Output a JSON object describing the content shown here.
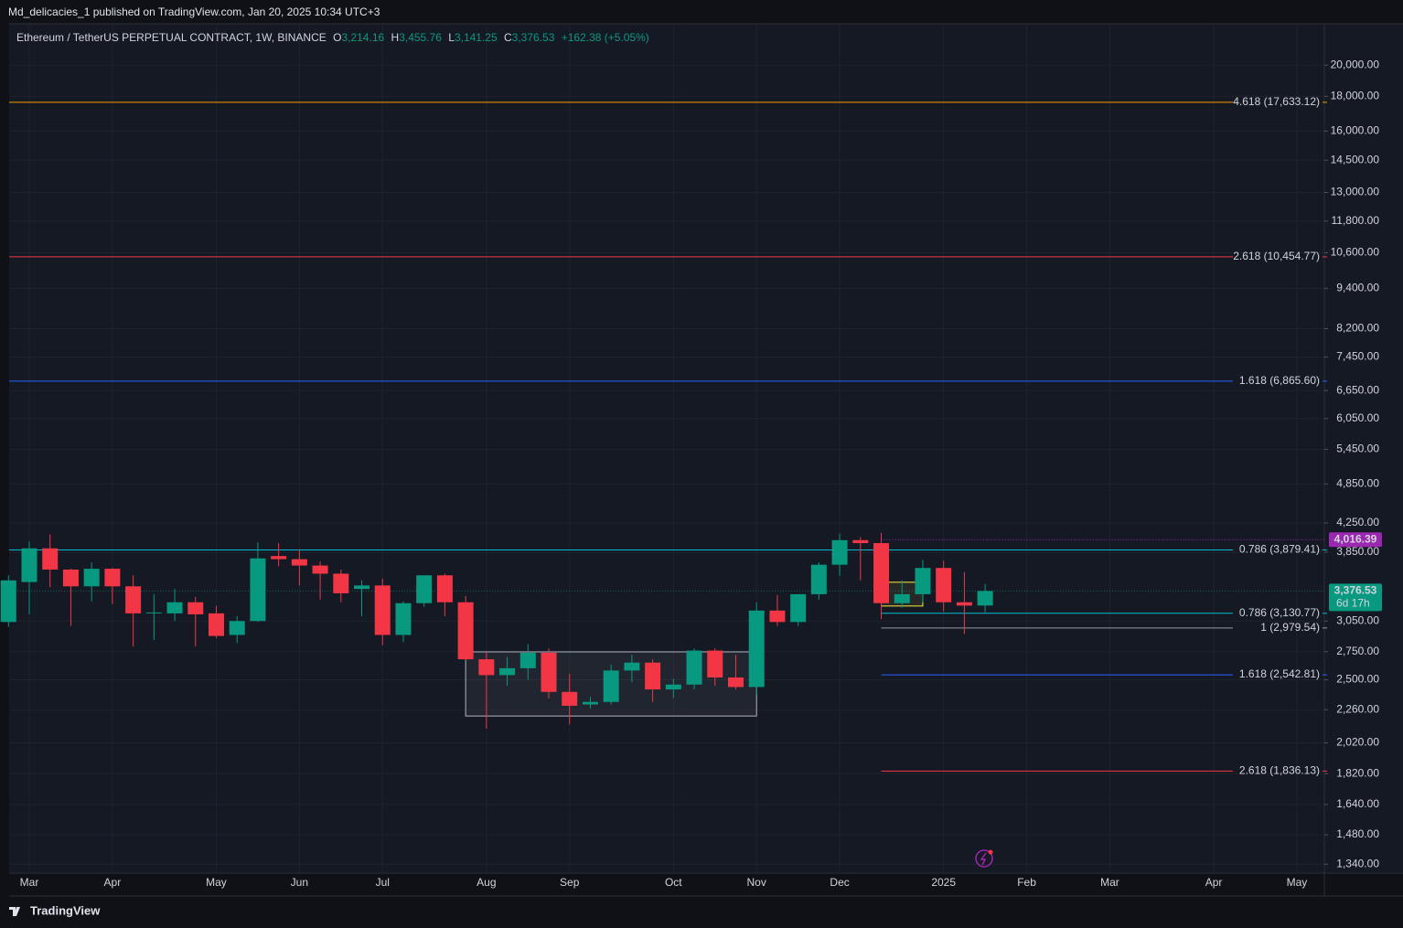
{
  "header": "Md_delicacies_1 published on TradingView.com, Jan 20, 2025 10:34 UTC+3",
  "legend": {
    "symbol": "Ethereum / TetherUS PERPETUAL CONTRACT, 1W, BINANCE",
    "items": [
      {
        "key": "O",
        "text": "3,214.16"
      },
      {
        "key": "H",
        "text": "3,455.76"
      },
      {
        "key": "L",
        "text": "3,141.25"
      },
      {
        "key": "C",
        "text": "3,376.53"
      }
    ],
    "change": "+162.38 (+5.05%)"
  },
  "footer": "TradingView",
  "chart_data": {
    "type": "candlestick",
    "log_scale": true,
    "grid": true,
    "up_color": "#089981",
    "down_color": "#f23645",
    "categories": [
      null,
      "Mar",
      null,
      null,
      null,
      "Apr",
      null,
      null,
      null,
      null,
      "May",
      null,
      null,
      null,
      "Jun",
      null,
      null,
      null,
      "Jul",
      null,
      null,
      null,
      null,
      "Aug",
      null,
      null,
      null,
      "Sep",
      null,
      null,
      null,
      null,
      "Oct",
      null,
      null,
      null,
      "Nov",
      null,
      null,
      null,
      "Dec",
      null,
      null,
      null,
      null,
      "2025",
      null,
      null,
      null,
      "Feb",
      null,
      null,
      null,
      "Mar",
      null,
      null,
      null,
      null,
      "Apr",
      null,
      null,
      null,
      "May",
      null
    ],
    "open": [
      3040,
      3480,
      3900,
      3630,
      3430,
      3640,
      3430,
      3130,
      3130,
      3250,
      3130,
      2910,
      3050,
      3800,
      3760,
      3680,
      3580,
      3400,
      3440,
      2910,
      3240,
      3560,
      3250,
      2680,
      2540,
      2600,
      2740,
      2400,
      2300,
      2320,
      2580,
      2650,
      2420,
      2460,
      2760,
      2520,
      2440,
      3160,
      3040,
      3340,
      3690,
      4010,
      3970,
      3240,
      3340,
      3650,
      3250,
      3214.16,
      null,
      null,
      null,
      null,
      null,
      null,
      null,
      null,
      null,
      null,
      null,
      null,
      null,
      null,
      null,
      null
    ],
    "high": [
      3560,
      3990,
      4090,
      3640,
      3720,
      3650,
      3560,
      3340,
      3400,
      3310,
      3210,
      3100,
      3980,
      3970,
      3890,
      3730,
      3630,
      3500,
      3520,
      3260,
      3560,
      3580,
      3320,
      2740,
      2700,
      2820,
      2780,
      2550,
      2360,
      2630,
      2720,
      2680,
      2510,
      2780,
      2780,
      2720,
      3250,
      3330,
      3340,
      3720,
      4100,
      4050,
      4110,
      3500,
      3750,
      3740,
      3600,
      3455.76,
      null,
      null,
      null,
      null,
      null,
      null,
      null,
      null,
      null,
      null,
      null,
      null,
      null,
      null,
      null,
      null
    ],
    "low": [
      2990,
      3120,
      3420,
      3000,
      3260,
      3230,
      2800,
      2860,
      3050,
      2800,
      2880,
      2830,
      3040,
      3670,
      3440,
      3280,
      3250,
      3100,
      2810,
      2840,
      3200,
      3100,
      2670,
      2120,
      2450,
      2500,
      2350,
      2150,
      2270,
      2300,
      2480,
      2320,
      2350,
      2420,
      2450,
      2420,
      2380,
      3000,
      3000,
      3280,
      3550,
      3500,
      3070,
      3190,
      3250,
      3150,
      2920,
      3141.25,
      null,
      null,
      null,
      null,
      null,
      null,
      null,
      null,
      null,
      null,
      null,
      null,
      null,
      null,
      null,
      null
    ],
    "close": [
      3500,
      3900,
      3630,
      3430,
      3640,
      3430,
      3130,
      3140,
      3250,
      3120,
      2900,
      3050,
      3770,
      3760,
      3680,
      3580,
      3350,
      3440,
      2910,
      3240,
      3560,
      3250,
      2680,
      2540,
      2600,
      2740,
      2400,
      2290,
      2320,
      2580,
      2650,
      2420,
      2460,
      2760,
      2520,
      2440,
      3160,
      3040,
      3340,
      3690,
      4010,
      3970,
      3240,
      3340,
      3650,
      3250,
      3214,
      3376.53,
      null,
      null,
      null,
      null,
      null,
      null,
      null,
      null,
      null,
      null,
      null,
      null,
      null,
      null,
      null,
      null
    ],
    "ylim": [
      1300,
      23000
    ],
    "yticks": [
      {
        "value": 20000,
        "label": "20,000.00"
      },
      {
        "value": 18000,
        "label": "18,000.00"
      },
      {
        "value": 16000,
        "label": "16,000.00"
      },
      {
        "value": 14500,
        "label": "14,500.00"
      },
      {
        "value": 13000,
        "label": "13,000.00"
      },
      {
        "value": 11800,
        "label": "11,800.00"
      },
      {
        "value": 10600,
        "label": "10,600.00"
      },
      {
        "value": 9400,
        "label": "9,400.00"
      },
      {
        "value": 8200,
        "label": "8,200.00"
      },
      {
        "value": 7450,
        "label": "7,450.00"
      },
      {
        "value": 6650,
        "label": "6,650.00"
      },
      {
        "value": 6050,
        "label": "6,050.00"
      },
      {
        "value": 5450,
        "label": "5,450.00"
      },
      {
        "value": 4850,
        "label": "4,850.00"
      },
      {
        "value": 4250,
        "label": "4,250.00"
      },
      {
        "value": 3850,
        "label": "3,850.00"
      },
      {
        "value": 3050,
        "label": "3,050.00"
      },
      {
        "value": 2750,
        "label": "2,750.00"
      },
      {
        "value": 2500,
        "label": "2,500.00"
      },
      {
        "value": 2260,
        "label": "2,260.00"
      },
      {
        "value": 2020,
        "label": "2,020.00"
      },
      {
        "value": 1820,
        "label": "1,820.00"
      },
      {
        "value": 1640,
        "label": "1,640.00"
      },
      {
        "value": 1480,
        "label": "1,480.00"
      },
      {
        "value": 1340,
        "label": "1,340.00"
      }
    ],
    "levels": [
      {
        "value": 17633.12,
        "label": "4.618 (17,633.12)",
        "color": "#ff9800"
      },
      {
        "value": 10454.77,
        "label": "2.618 (10,454.77)",
        "color": "#f23645"
      },
      {
        "value": 6865.6,
        "label": "1.618 (6,865.60)",
        "color": "#2962ff"
      },
      {
        "value": 3879.41,
        "label": "0.786 (3,879.41)",
        "color": "#00bcd4"
      },
      {
        "value": 3130.77,
        "label": "0.786 (3,130.77)",
        "color": "#00bcd4",
        "from": 42
      },
      {
        "value": 2979.54,
        "label": "1 (2,979.54)",
        "color": "#9598a1",
        "from": 42
      },
      {
        "value": 2542.81,
        "label": "1.618 (2,542.81)",
        "color": "#2962ff",
        "from": 42
      },
      {
        "value": 1836.13,
        "label": "2.618 (1,836.13)",
        "color": "#f23645",
        "from": 42
      }
    ],
    "boxes": [
      {
        "x": [
          22,
          36
        ],
        "y": [
          2748,
          2212
        ],
        "color": "#b2b5be"
      },
      {
        "x": [
          42,
          44
        ],
        "y": [
          3478,
          3209
        ],
        "color": "#ffeb3b"
      }
    ],
    "marker": {
      "value": 4016.39,
      "label": "4,016.39",
      "color": "#9c27b0",
      "from": 42
    },
    "last_price": {
      "value": 3376.53,
      "label": "3,376.53",
      "countdown": "6d 17h"
    }
  }
}
